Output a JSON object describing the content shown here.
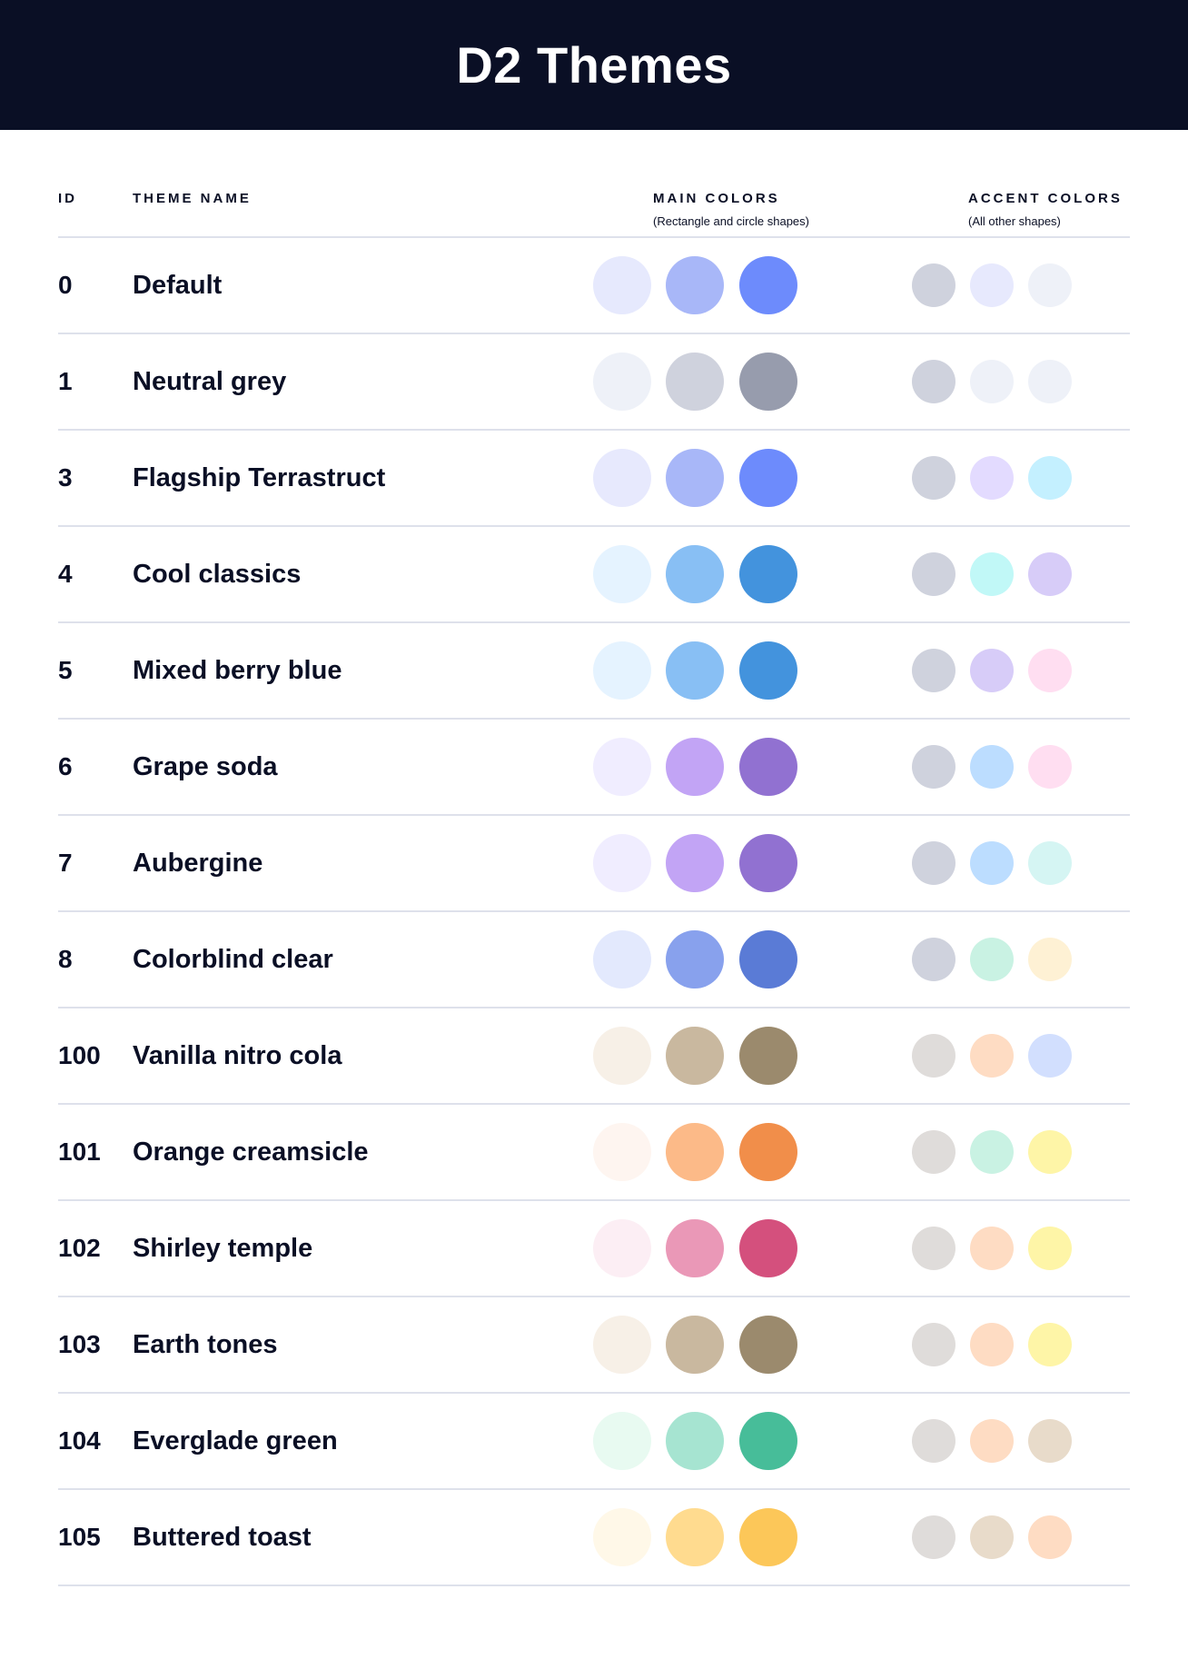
{
  "title": "D2 Themes",
  "columns": {
    "id": "ID",
    "name": "THEME NAME",
    "main": "MAIN COLORS",
    "main_sub": "(Rectangle and circle shapes)",
    "accent": "ACCENT COLORS",
    "accent_sub": "(All other shapes)"
  },
  "themes": [
    {
      "id": "0",
      "name": "Default",
      "main": [
        "#E6E9FD",
        "#A8B7F8",
        "#6D8BFC"
      ],
      "accent": [
        "#CFD2DD",
        "#E7E9FD",
        "#EEF1F8"
      ]
    },
    {
      "id": "1",
      "name": "Neutral grey",
      "main": [
        "#EEF1F8",
        "#CFD2DD",
        "#979CAD"
      ],
      "accent": [
        "#CFD2DD",
        "#EEF1F8",
        "#EEF1F8"
      ]
    },
    {
      "id": "3",
      "name": "Flagship Terrastruct",
      "main": [
        "#E7E9FD",
        "#A8B7F8",
        "#6D8BFC"
      ],
      "accent": [
        "#CFD2DD",
        "#E3DBFF",
        "#C4F0FF"
      ]
    },
    {
      "id": "4",
      "name": "Cool classics",
      "main": [
        "#E5F3FF",
        "#88BFF4",
        "#4393DD"
      ],
      "accent": [
        "#CFD2DD",
        "#C1F8F7",
        "#D7CCF8"
      ]
    },
    {
      "id": "5",
      "name": "Mixed berry blue",
      "main": [
        "#E5F3FF",
        "#88BFF4",
        "#4393DD"
      ],
      "accent": [
        "#CFD2DD",
        "#D7CCF8",
        "#FFDEF1"
      ]
    },
    {
      "id": "6",
      "name": "Grape soda",
      "main": [
        "#F0EDFF",
        "#C2A4F5",
        "#9171D1"
      ],
      "accent": [
        "#CFD2DD",
        "#BCDDFF",
        "#FFDEF1"
      ]
    },
    {
      "id": "7",
      "name": "Aubergine",
      "main": [
        "#F0EDFF",
        "#C2A4F5",
        "#9171D1"
      ],
      "accent": [
        "#CFD2DD",
        "#BCDDFF",
        "#D5F5F3"
      ]
    },
    {
      "id": "8",
      "name": "Colorblind clear",
      "main": [
        "#E3E9FD",
        "#88A1ED",
        "#5A7BD6"
      ],
      "accent": [
        "#CFD2DD",
        "#C9F2E3",
        "#FEF1D4"
      ]
    },
    {
      "id": "100",
      "name": "Vanilla nitro cola",
      "main": [
        "#F7F0E7",
        "#C9B89F",
        "#9B8A6D"
      ],
      "accent": [
        "#DFDCDA",
        "#FEDCC3",
        "#D2DFFE"
      ]
    },
    {
      "id": "101",
      "name": "Orange creamsicle",
      "main": [
        "#FEF5F0",
        "#FCBA88",
        "#F18E4A"
      ],
      "accent": [
        "#DFDCDA",
        "#C9F2E3",
        "#FEF5A7"
      ]
    },
    {
      "id": "102",
      "name": "Shirley temple",
      "main": [
        "#FCEEF4",
        "#EA98B7",
        "#D4507D"
      ],
      "accent": [
        "#DFDCDA",
        "#FEDCC3",
        "#FEF5A7"
      ]
    },
    {
      "id": "103",
      "name": "Earth tones",
      "main": [
        "#F7F0E7",
        "#C9B89F",
        "#9B8A6D"
      ],
      "accent": [
        "#DFDCDA",
        "#FEDCC3",
        "#FEF5A7"
      ]
    },
    {
      "id": "104",
      "name": "Everglade green",
      "main": [
        "#E8FAF1",
        "#A6E4D1",
        "#47BD99"
      ],
      "accent": [
        "#DFDCDA",
        "#FEDCC3",
        "#E8DBCA"
      ]
    },
    {
      "id": "105",
      "name": "Buttered toast",
      "main": [
        "#FFF8E8",
        "#FFDB8F",
        "#FCC759"
      ],
      "accent": [
        "#DFDCDA",
        "#E8DBCA",
        "#FEDCC3"
      ]
    }
  ]
}
